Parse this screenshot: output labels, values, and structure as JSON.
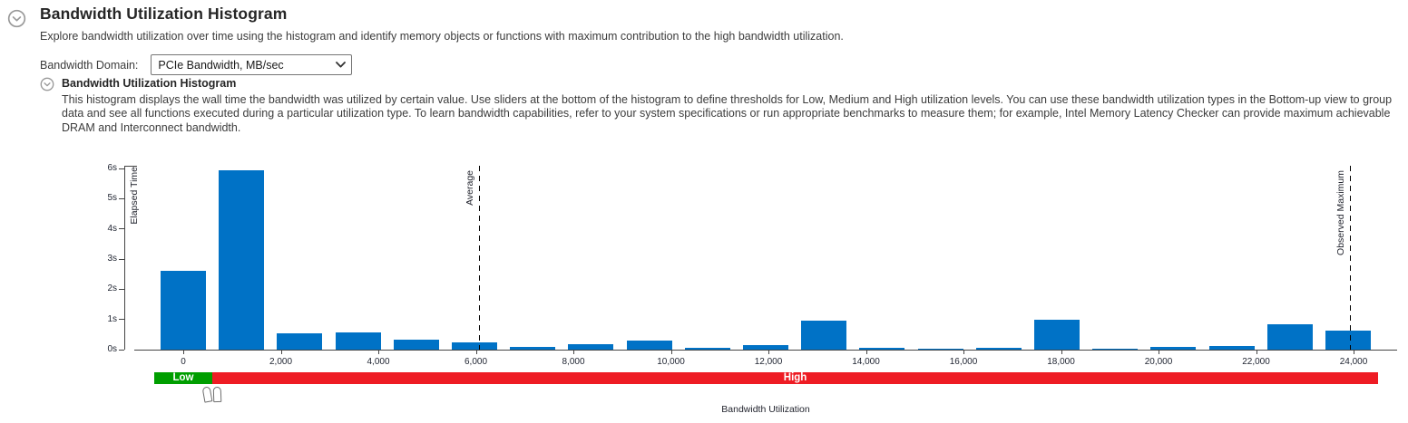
{
  "header": {
    "title": "Bandwidth Utilization Histogram",
    "subtitle": "Explore bandwidth utilization over time using the histogram and identify memory objects or functions with maximum contribution to the high bandwidth utilization."
  },
  "controls": {
    "domain_label": "Bandwidth Domain:",
    "domain_value": "PCIe Bandwidth, MB/sec"
  },
  "section": {
    "title": "Bandwidth Utilization Histogram",
    "description": "This histogram displays the wall time the bandwidth was utilized by certain value. Use sliders at the bottom of the histogram to define thresholds for Low, Medium and High utilization levels. You can use these bandwidth utilization types in the Bottom-up view to group data and see all functions executed during a particular utilization type. To learn bandwidth capabilities, refer to your system specifications or run appropriate benchmarks to measure them; for example, Intel Memory Latency Checker can provide maximum achievable DRAM and Interconnect bandwidth."
  },
  "chart_data": {
    "type": "bar",
    "title": "Bandwidth Utilization Histogram",
    "xlabel": "Bandwidth Utilization",
    "ylabel": "Elapsed Time",
    "categories": [
      0,
      1200,
      2400,
      3600,
      4800,
      6000,
      7200,
      8400,
      9600,
      10800,
      12000,
      13200,
      14400,
      15600,
      16800,
      18000,
      19200,
      20400,
      21600,
      22800,
      24000
    ],
    "values": [
      2.6,
      5.95,
      0.54,
      0.56,
      0.33,
      0.23,
      0.08,
      0.19,
      0.3,
      0.05,
      0.14,
      0.96,
      0.06,
      0.04,
      0.07,
      0.99,
      0.04,
      0.1,
      0.11,
      0.85,
      0.64
    ],
    "y_ticks": [
      "0s",
      "1s",
      "2s",
      "3s",
      "4s",
      "5s",
      "6s"
    ],
    "x_ticks": [
      {
        "v": 0,
        "label": "0"
      },
      {
        "v": 2000,
        "label": "2,000"
      },
      {
        "v": 4000,
        "label": "4,000"
      },
      {
        "v": 6000,
        "label": "6,000"
      },
      {
        "v": 8000,
        "label": "8,000"
      },
      {
        "v": 10000,
        "label": "10,000"
      },
      {
        "v": 12000,
        "label": "12,000"
      },
      {
        "v": 14000,
        "label": "14,000"
      },
      {
        "v": 16000,
        "label": "16,000"
      },
      {
        "v": 18000,
        "label": "18,000"
      },
      {
        "v": 20000,
        "label": "20,000"
      },
      {
        "v": 22000,
        "label": "22,000"
      },
      {
        "v": 24000,
        "label": "24,000"
      }
    ],
    "ylim": [
      0,
      6
    ],
    "xlim": [
      -1000,
      25000
    ],
    "grid": false,
    "bar_color": "#0072C6",
    "markers": [
      {
        "label": "Average",
        "x": 6065
      },
      {
        "label": "Observed Maximum",
        "x": 23930
      }
    ]
  },
  "slider": {
    "low_label": "Low",
    "high_label": "High",
    "low_color": "#009E00",
    "high_color": "#EE1C24",
    "min": -600,
    "max": 24500,
    "low_threshold": 600,
    "high_threshold": 600
  }
}
